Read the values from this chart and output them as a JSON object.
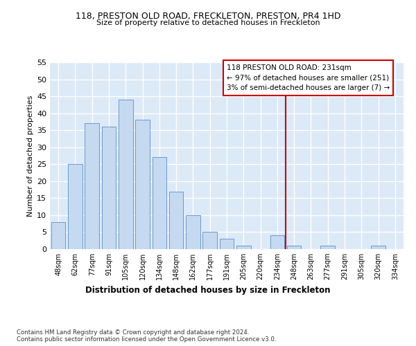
{
  "title1": "118, PRESTON OLD ROAD, FRECKLETON, PRESTON, PR4 1HD",
  "title2": "Size of property relative to detached houses in Freckleton",
  "xlabel": "Distribution of detached houses by size in Freckleton",
  "ylabel": "Number of detached properties",
  "bar_labels": [
    "48sqm",
    "62sqm",
    "77sqm",
    "91sqm",
    "105sqm",
    "120sqm",
    "134sqm",
    "148sqm",
    "162sqm",
    "177sqm",
    "191sqm",
    "205sqm",
    "220sqm",
    "234sqm",
    "248sqm",
    "263sqm",
    "277sqm",
    "291sqm",
    "305sqm",
    "320sqm",
    "334sqm"
  ],
  "bar_values": [
    8,
    25,
    37,
    36,
    44,
    38,
    27,
    17,
    10,
    5,
    3,
    1,
    0,
    4,
    1,
    0,
    1,
    0,
    0,
    1,
    0
  ],
  "bar_color": "#c5d9f0",
  "bar_edge_color": "#5a8fc4",
  "background_color": "#dce9f7",
  "grid_color": "#ffffff",
  "vline_x": 13.5,
  "vline_color": "#cc0000",
  "annotation_text": "118 PRESTON OLD ROAD: 231sqm\n← 97% of detached houses are smaller (251)\n3% of semi-detached houses are larger (7) →",
  "annotation_box_color": "#ffffff",
  "annotation_border_color": "#cc0000",
  "footer_text": "Contains HM Land Registry data © Crown copyright and database right 2024.\nContains public sector information licensed under the Open Government Licence v3.0.",
  "ylim": [
    0,
    55
  ],
  "yticks": [
    0,
    5,
    10,
    15,
    20,
    25,
    30,
    35,
    40,
    45,
    50,
    55
  ]
}
